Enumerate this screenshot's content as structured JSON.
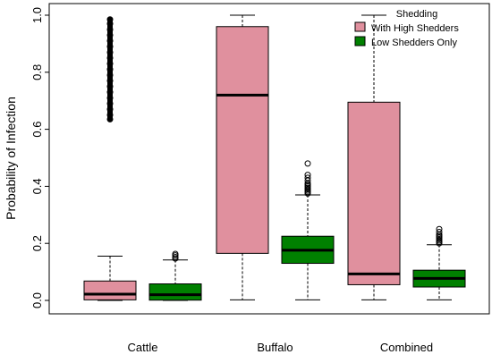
{
  "chart_data": {
    "type": "box",
    "title": "",
    "xlabel": "",
    "ylabel": "Probability of Infection",
    "ylim": [
      0,
      1
    ],
    "y_ticks": [
      0.0,
      0.2,
      0.4,
      0.6,
      0.8,
      1.0
    ],
    "y_tick_labels": [
      "0.0",
      "0.2",
      "0.4",
      "0.6",
      "0.8",
      "1.0"
    ],
    "grid": false,
    "categories": [
      "Cattle",
      "Buffalo",
      "Combined"
    ],
    "legend": {
      "title": "Shedding",
      "placement": "top-right",
      "entries": [
        {
          "name": "With High Shedders",
          "color": "#E0909E"
        },
        {
          "name": "Low Shedders Only",
          "color": "#008000"
        }
      ]
    },
    "series": [
      {
        "name": "With High Shedders",
        "color": "#E0909E",
        "boxes": [
          {
            "category": "Cattle",
            "whisker_low": 0.0,
            "q1": 0.002,
            "median": 0.022,
            "q3": 0.068,
            "whisker_high": 0.155,
            "outliers": [
              0.635,
              0.65,
              0.67,
              0.69,
              0.71,
              0.73,
              0.75,
              0.77,
              0.79,
              0.81,
              0.83,
              0.85,
              0.87,
              0.89,
              0.91,
              0.93,
              0.95,
              0.97,
              0.985
            ]
          },
          {
            "category": "Buffalo",
            "whisker_low": 0.002,
            "q1": 0.165,
            "median": 0.72,
            "q3": 0.96,
            "whisker_high": 1.0,
            "outliers": []
          },
          {
            "category": "Combined",
            "whisker_low": 0.002,
            "q1": 0.055,
            "median": 0.093,
            "q3": 0.695,
            "whisker_high": 1.0,
            "outliers": []
          }
        ]
      },
      {
        "name": "Low Shedders Only",
        "color": "#008000",
        "boxes": [
          {
            "category": "Cattle",
            "whisker_low": 0.0,
            "q1": 0.001,
            "median": 0.02,
            "q3": 0.058,
            "whisker_high": 0.142,
            "outliers": [
              0.147,
              0.152,
              0.158,
              0.163
            ]
          },
          {
            "category": "Buffalo",
            "whisker_low": 0.002,
            "q1": 0.13,
            "median": 0.176,
            "q3": 0.225,
            "whisker_high": 0.37,
            "outliers": [
              0.375,
              0.38,
              0.385,
              0.39,
              0.395,
              0.4,
              0.405,
              0.41,
              0.42,
              0.43,
              0.44,
              0.48
            ]
          },
          {
            "category": "Combined",
            "whisker_low": 0.002,
            "q1": 0.047,
            "median": 0.077,
            "q3": 0.106,
            "whisker_high": 0.195,
            "outliers": [
              0.2,
              0.205,
              0.21,
              0.215,
              0.22,
              0.225,
              0.23,
              0.24,
              0.25
            ]
          }
        ]
      }
    ]
  }
}
